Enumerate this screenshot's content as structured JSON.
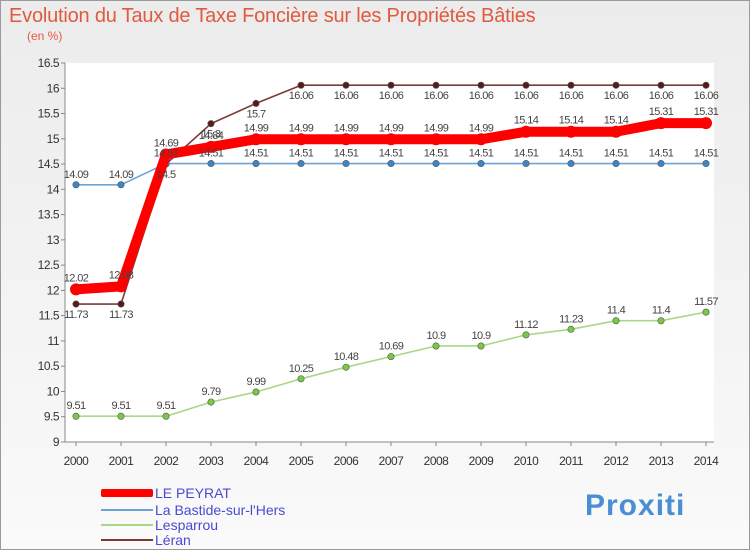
{
  "title": "Evolution du Taux de Taxe Foncière sur les Propriétés Bâties",
  "unit_label": "(en %)",
  "brand": "Proxiti",
  "chart_data": {
    "type": "line",
    "title": "Evolution du Taux de Taxe Foncière sur les Propriétés Bâties",
    "ylabel": "(en %)",
    "xlabel": "",
    "x": [
      "2000",
      "2001",
      "2002",
      "2003",
      "2004",
      "2005",
      "2006",
      "2007",
      "2008",
      "2009",
      "2010",
      "2011",
      "2012",
      "2013",
      "2014"
    ],
    "ylim": [
      9,
      16.5
    ],
    "yticks": [
      "9",
      "9.5",
      "10",
      "10.5",
      "11",
      "11.5",
      "12",
      "12.5",
      "13",
      "13.5",
      "14",
      "14.5",
      "15",
      "15.5",
      "16",
      "16.5"
    ],
    "grid": false,
    "legend_position": "bottom-left",
    "series": [
      {
        "name": "LE PEYRAT",
        "color": "#ff0000",
        "point_color": "#ff0000",
        "labels_above": true,
        "values": [
          12.02,
          12.08,
          14.69,
          14.84,
          14.99,
          14.99,
          14.99,
          14.99,
          14.99,
          14.99,
          15.14,
          15.14,
          15.14,
          15.31,
          15.31
        ]
      },
      {
        "name": "La Bastide-sur-l'Hers",
        "color": "#6fa3d8",
        "point_color": "#3d86c6",
        "labels_above": true,
        "values": [
          14.09,
          14.09,
          14.51,
          14.51,
          14.51,
          14.51,
          14.51,
          14.51,
          14.51,
          14.51,
          14.51,
          14.51,
          14.51,
          14.51,
          14.51
        ]
      },
      {
        "name": "Lesparrou",
        "color": "#a8d884",
        "point_color": "#7ac943",
        "labels_above": true,
        "values": [
          9.51,
          9.51,
          9.51,
          9.79,
          9.99,
          10.25,
          10.48,
          10.69,
          10.9,
          10.9,
          11.12,
          11.23,
          11.4,
          11.4,
          11.57
        ]
      },
      {
        "name": "Léran",
        "color": "#7a3b3b",
        "point_color": "#5a1a1a",
        "labels_above": false,
        "values": [
          11.73,
          11.73,
          14.5,
          15.3,
          15.7,
          16.06,
          16.06,
          16.06,
          16.06,
          16.06,
          16.06,
          16.06,
          16.06,
          16.06,
          16.06
        ]
      }
    ]
  }
}
